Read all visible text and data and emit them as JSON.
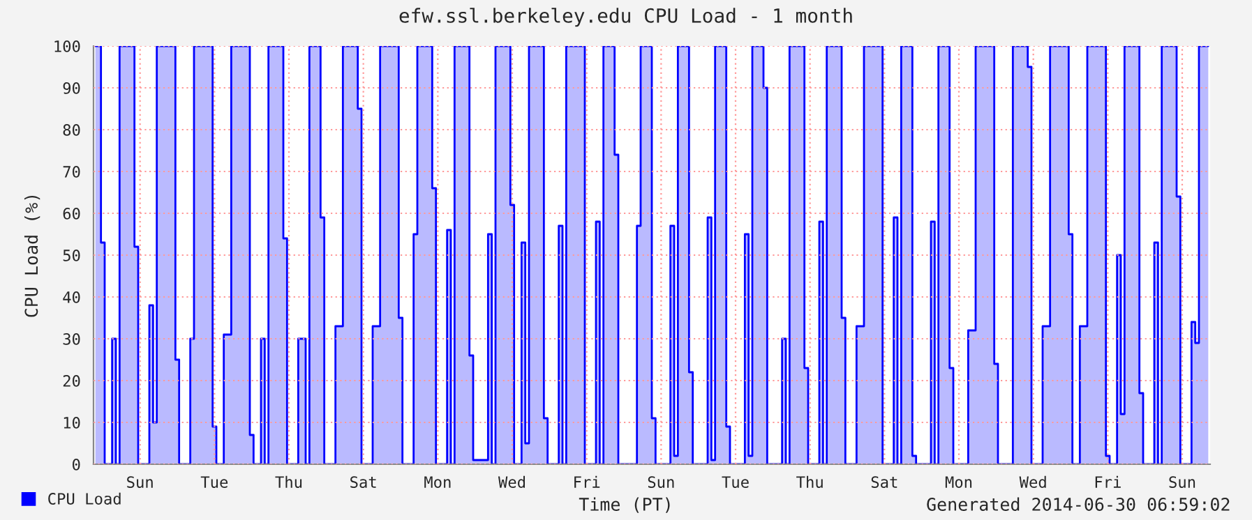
{
  "chart_data": {
    "type": "area",
    "title": "efw.ssl.berkeley.edu CPU Load - 1 month",
    "xlabel": "Time (PT)",
    "ylabel": "CPU Load (%)",
    "annotations": [
      "Generated 2014-06-30 06:59:02"
    ],
    "categories": [
      null,
      null,
      null,
      null,
      null,
      null,
      null,
      null,
      null,
      null,
      null,
      null,
      "Sun",
      null,
      null,
      null,
      null,
      null,
      null,
      null,
      null,
      null,
      null,
      null,
      null,
      null,
      null,
      null,
      null,
      null,
      null,
      null,
      "Tue",
      null,
      null,
      null,
      null,
      null,
      null,
      null,
      null,
      null,
      null,
      null,
      null,
      null,
      null,
      null,
      null,
      null,
      null,
      null,
      "Thu",
      null,
      null,
      null,
      null,
      null,
      null,
      null,
      null,
      null,
      null,
      null,
      null,
      null,
      null,
      null,
      null,
      null,
      null,
      null,
      "Sat",
      null,
      null,
      null,
      null,
      null,
      null,
      null,
      null,
      null,
      null,
      null,
      null,
      null,
      null,
      null,
      null,
      null,
      null,
      null,
      "Mon",
      null,
      null,
      null,
      null,
      null,
      null,
      null,
      null,
      null,
      null,
      null,
      null,
      null,
      null,
      null,
      null,
      null,
      null,
      null,
      "Wed",
      null,
      null,
      null,
      null,
      null,
      null,
      null,
      null,
      null,
      null,
      null,
      null,
      null,
      null,
      null,
      null,
      null,
      null,
      null,
      "Fri",
      null,
      null,
      null,
      null,
      null,
      null,
      null,
      null,
      null,
      null,
      null,
      null,
      null,
      null,
      null,
      null,
      null,
      null,
      null,
      "Sun",
      null,
      null,
      null,
      null,
      null,
      null,
      null,
      null,
      null,
      null,
      null,
      null,
      null,
      null,
      null,
      null,
      null,
      null,
      null,
      "Tue",
      null,
      null,
      null,
      null,
      null,
      null,
      null,
      null,
      null,
      null,
      null,
      null,
      null,
      null,
      null,
      null,
      null,
      null,
      null,
      "Thu",
      null,
      null,
      null,
      null,
      null,
      null,
      null,
      null,
      null,
      null,
      null,
      null,
      null,
      null,
      null,
      null,
      null,
      null,
      null,
      "Sat",
      null,
      null,
      null,
      null,
      null,
      null,
      null,
      null,
      null,
      null,
      null,
      null,
      null,
      null,
      null,
      null,
      null,
      null,
      null,
      "Mon",
      null,
      null,
      null,
      null,
      null,
      null,
      null,
      null,
      null,
      null,
      null,
      null,
      null,
      null,
      null,
      null,
      null,
      null,
      null,
      "Wed",
      null,
      null,
      null,
      null,
      null,
      null,
      null,
      null,
      null,
      null,
      null,
      null,
      null,
      null,
      null,
      null,
      null,
      null,
      null,
      "Fri",
      null,
      null,
      null,
      null,
      null,
      null,
      null,
      null,
      null,
      null,
      null,
      null,
      null,
      null,
      null,
      null,
      null,
      null,
      null,
      "Sun",
      null,
      null,
      null,
      null,
      null,
      null,
      null
    ],
    "series": [
      {
        "name": "CPU Load",
        "color": "#0000ff",
        "values": [
          100,
          100,
          53,
          0,
          0,
          30,
          0,
          100,
          100,
          100,
          100,
          52,
          0,
          0,
          0,
          38,
          10,
          100,
          100,
          100,
          100,
          100,
          25,
          0,
          0,
          0,
          30,
          100,
          100,
          100,
          100,
          100,
          9,
          0,
          0,
          31,
          31,
          100,
          100,
          100,
          100,
          100,
          7,
          0,
          0,
          30,
          0,
          100,
          100,
          100,
          100,
          54,
          0,
          0,
          0,
          30,
          30,
          0,
          100,
          100,
          100,
          59,
          0,
          0,
          0,
          33,
          33,
          100,
          100,
          100,
          100,
          85,
          0,
          0,
          0,
          33,
          33,
          100,
          100,
          100,
          100,
          100,
          35,
          0,
          0,
          0,
          55,
          100,
          100,
          100,
          100,
          66,
          0,
          0,
          0,
          56,
          0,
          100,
          100,
          100,
          100,
          26,
          1,
          1,
          1,
          1,
          55,
          0,
          100,
          100,
          100,
          100,
          62,
          0,
          0,
          53,
          5,
          100,
          100,
          100,
          100,
          11,
          0,
          0,
          0,
          57,
          0,
          100,
          100,
          100,
          100,
          100,
          0,
          0,
          0,
          58,
          0,
          100,
          100,
          100,
          74,
          0,
          0,
          0,
          0,
          0,
          57,
          100,
          100,
          100,
          11,
          0,
          0,
          0,
          0,
          57,
          2,
          100,
          100,
          100,
          22,
          0,
          0,
          0,
          0,
          59,
          1,
          100,
          100,
          100,
          9,
          0,
          0,
          0,
          0,
          55,
          2,
          100,
          100,
          100,
          90,
          0,
          0,
          0,
          0,
          30,
          0,
          100,
          100,
          100,
          100,
          23,
          0,
          0,
          0,
          58,
          0,
          100,
          100,
          100,
          100,
          35,
          0,
          0,
          0,
          33,
          33,
          100,
          100,
          100,
          100,
          100,
          0,
          0,
          0,
          59,
          0,
          100,
          100,
          100,
          2,
          0,
          0,
          0,
          0,
          58,
          0,
          100,
          100,
          100,
          23,
          0,
          0,
          0,
          0,
          32,
          32,
          100,
          100,
          100,
          100,
          100,
          24,
          0,
          0,
          0,
          0,
          100,
          100,
          100,
          100,
          95,
          0,
          0,
          0,
          33,
          33,
          100,
          100,
          100,
          100,
          100,
          55,
          0,
          0,
          33,
          33,
          100,
          100,
          100,
          100,
          100,
          2,
          0,
          0,
          50,
          12,
          100,
          100,
          100,
          100,
          17,
          0,
          0,
          0,
          53,
          0,
          100,
          100,
          100,
          100,
          64,
          0,
          0,
          0,
          34,
          29,
          100,
          100,
          100
        ]
      }
    ],
    "ylim": [
      0,
      100
    ],
    "yticks": [
      0,
      10,
      20,
      30,
      40,
      50,
      60,
      70,
      80,
      90,
      100
    ],
    "grid": true,
    "legend": "bottom left",
    "line_style": "solid",
    "marker": "none"
  }
}
